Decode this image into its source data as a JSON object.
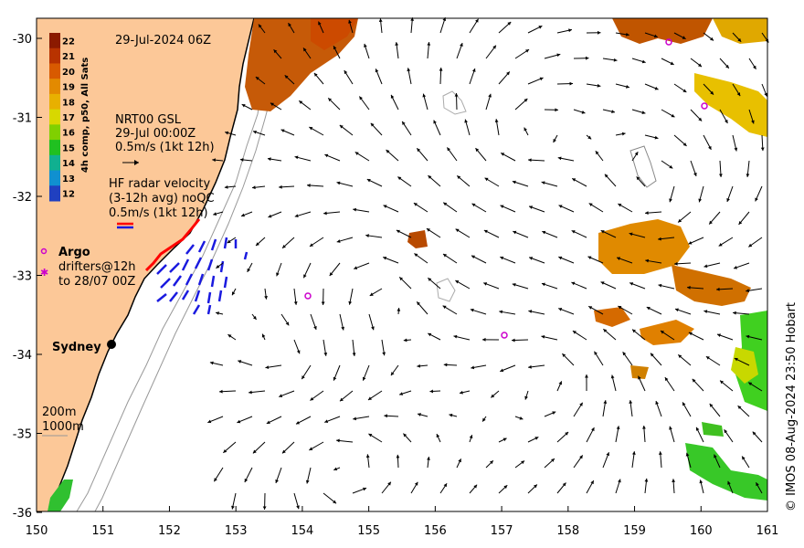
{
  "map": {
    "date_title": "29-Jul-2024 06Z",
    "colorbar_title": "4h comp, p50, All Sats",
    "colorbar_ticks": [
      "22",
      "21",
      "20",
      "19",
      "18",
      "17",
      "16",
      "15",
      "14",
      "13",
      "12"
    ],
    "colorbar_colors": [
      "#8b1a00",
      "#b83300",
      "#d85a00",
      "#e38a00",
      "#e8b000",
      "#d8d800",
      "#80d000",
      "#20c020",
      "#10b090",
      "#1090d0",
      "#2040c0"
    ],
    "nrt_label_1": "NRT00 GSL",
    "nrt_label_2": "29-Jul 00:00Z",
    "nrt_label_3": "0.5m/s (1kt 12h)",
    "hf_label_1": "HF radar velocity",
    "hf_label_2": "(3-12h avg) noQC",
    "hf_label_3": "0.5m/s (1kt 12h)",
    "argo_label": "Argo",
    "drifters_label_1": "drifters@12h",
    "drifters_label_2": "to 28/07 00Z",
    "city_label": "Sydney",
    "depth_label_1": "200m",
    "depth_label_2": "1000m",
    "credit": "© IMOS 08-Aug-2024 23:50 Hobart",
    "x_ticks": [
      "150",
      "151",
      "152",
      "153",
      "154",
      "155",
      "156",
      "157",
      "158",
      "159",
      "160",
      "161"
    ],
    "y_ticks": [
      "-30",
      "-31",
      "-32",
      "-33",
      "-34",
      "-35",
      "-36"
    ],
    "colors": {
      "land": "#fcc898",
      "arrow": "#000000",
      "hf_radar": "#1a1adf",
      "argo": "#cc00cc",
      "drifter": "#ff0000"
    }
  }
}
